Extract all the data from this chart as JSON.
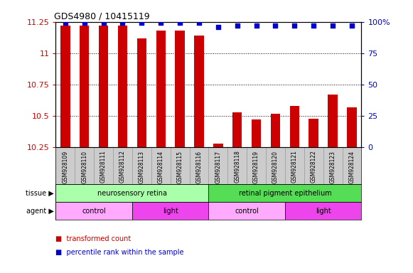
{
  "title": "GDS4980 / 10415119",
  "samples": [
    "GSM928109",
    "GSM928110",
    "GSM928111",
    "GSM928112",
    "GSM928113",
    "GSM928114",
    "GSM928115",
    "GSM928116",
    "GSM928117",
    "GSM928118",
    "GSM928119",
    "GSM928120",
    "GSM928121",
    "GSM928122",
    "GSM928123",
    "GSM928124"
  ],
  "transformed_count": [
    11.22,
    11.22,
    11.22,
    11.22,
    11.12,
    11.18,
    11.18,
    11.14,
    10.28,
    10.53,
    10.47,
    10.52,
    10.58,
    10.48,
    10.67,
    10.57
  ],
  "percentile_rank": [
    99,
    99,
    99,
    99,
    99,
    99,
    99,
    99,
    96,
    97,
    97,
    97,
    97,
    97,
    97,
    97
  ],
  "ymin": 10.25,
  "ymax": 11.25,
  "yticks": [
    10.25,
    10.5,
    10.75,
    11.0,
    11.25
  ],
  "ytick_labels": [
    "10.25",
    "10.5",
    "10.75",
    "11",
    "11.25"
  ],
  "y2min": 0,
  "y2max": 100,
  "y2ticks": [
    0,
    25,
    50,
    75,
    100
  ],
  "y2tick_labels": [
    "0",
    "25",
    "50",
    "75",
    "100%"
  ],
  "bar_color": "#cc0000",
  "dot_color": "#0000cc",
  "bar_width": 0.5,
  "tissue_labels": [
    {
      "text": "neurosensory retina",
      "start": 0,
      "end": 7,
      "color": "#aaffaa"
    },
    {
      "text": "retinal pigment epithelium",
      "start": 8,
      "end": 15,
      "color": "#55dd55"
    }
  ],
  "agent_labels": [
    {
      "text": "control",
      "start": 0,
      "end": 3,
      "color": "#ffaaff"
    },
    {
      "text": "light",
      "start": 4,
      "end": 7,
      "color": "#ee44ee"
    },
    {
      "text": "control",
      "start": 8,
      "end": 11,
      "color": "#ffaaff"
    },
    {
      "text": "light",
      "start": 12,
      "end": 15,
      "color": "#ee44ee"
    }
  ],
  "sample_bg_color": "#cccccc",
  "plot_bg_color": "#ffffff",
  "tick_label_color_left": "#cc0000",
  "tick_label_color_right": "#0000cc",
  "grid_color": "#000000",
  "legend_bar_label": "transformed count",
  "legend_dot_label": "percentile rank within the sample",
  "left_label_tissue": "tissue",
  "left_label_agent": "agent",
  "left_arrow": "▶"
}
